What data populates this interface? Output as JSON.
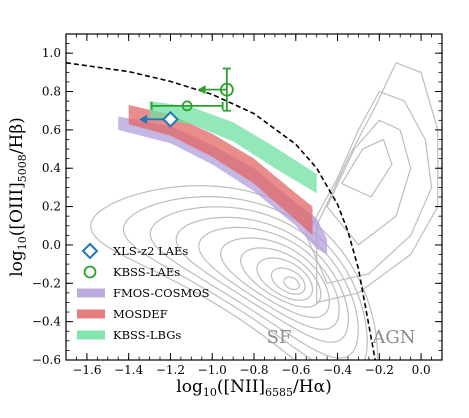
{
  "chart_data": {
    "type": "scatter",
    "xlabel": "log₁₀([NII]₆₅₈₅/Hα)",
    "ylabel": "log₁₀([OIII]₅₀₀₈/Hβ)",
    "xlim": [
      -1.7,
      0.1
    ],
    "ylim": [
      -0.6,
      1.1
    ],
    "x_ticks": [
      "−1.6",
      "−1.4",
      "−1.2",
      "−1.0",
      "−0.8",
      "−0.6",
      "−0.4",
      "−0.2",
      "0.0"
    ],
    "x_tick_values": [
      -1.6,
      -1.4,
      -1.2,
      -1.0,
      -0.8,
      -0.6,
      -0.4,
      -0.2,
      0.0
    ],
    "y_ticks": [
      "−0.6",
      "−0.4",
      "−0.2",
      "0.0",
      "0.2",
      "0.4",
      "0.6",
      "0.8",
      "1.0"
    ],
    "y_tick_values": [
      -0.6,
      -0.4,
      -0.2,
      0.0,
      0.2,
      0.4,
      0.6,
      0.8,
      1.0
    ],
    "grid": false,
    "legend_position": "bottom-left",
    "annotations": [
      {
        "text": "SF",
        "x": -0.68,
        "y": -0.48
      },
      {
        "text": "AGN",
        "x": -0.13,
        "y": -0.48
      }
    ],
    "demarcation_curve": {
      "style": "dashed",
      "points": [
        [
          -1.7,
          0.95
        ],
        [
          -1.4,
          0.904
        ],
        [
          -1.2,
          0.853
        ],
        [
          -1.0,
          0.785
        ],
        [
          -0.8,
          0.685
        ],
        [
          -0.6,
          0.525
        ],
        [
          -0.5,
          0.4
        ],
        [
          -0.4,
          0.211
        ],
        [
          -0.35,
          0.07
        ],
        [
          -0.3,
          -0.124
        ],
        [
          -0.25,
          -0.42
        ],
        [
          -0.22,
          -0.6
        ]
      ]
    },
    "bands": [
      {
        "name": "FMOS-COSMOS",
        "color": "#b39ddb",
        "upper": [
          [
            -1.45,
            0.67
          ],
          [
            -1.2,
            0.62
          ],
          [
            -1.0,
            0.52
          ],
          [
            -0.8,
            0.4
          ],
          [
            -0.6,
            0.22
          ],
          [
            -0.5,
            0.14
          ],
          [
            -0.45,
            0.03
          ]
        ],
        "lower": [
          [
            -1.45,
            0.6
          ],
          [
            -1.2,
            0.53
          ],
          [
            -1.0,
            0.42
          ],
          [
            -0.8,
            0.28
          ],
          [
            -0.6,
            0.1
          ],
          [
            -0.5,
            -0.02
          ],
          [
            -0.45,
            -0.05
          ]
        ]
      },
      {
        "name": "MOSDEF",
        "color": "#e06666",
        "upper": [
          [
            -1.4,
            0.73
          ],
          [
            -1.2,
            0.68
          ],
          [
            -1.0,
            0.58
          ],
          [
            -0.8,
            0.45
          ],
          [
            -0.6,
            0.27
          ],
          [
            -0.52,
            0.2
          ]
        ],
        "lower": [
          [
            -1.4,
            0.63
          ],
          [
            -1.2,
            0.57
          ],
          [
            -1.0,
            0.46
          ],
          [
            -0.8,
            0.32
          ],
          [
            -0.6,
            0.13
          ],
          [
            -0.52,
            0.05
          ]
        ]
      },
      {
        "name": "KBSS-LBGs",
        "color": "#6de0a0",
        "upper": [
          [
            -1.3,
            0.75
          ],
          [
            -1.1,
            0.72
          ],
          [
            -0.9,
            0.64
          ],
          [
            -0.7,
            0.51
          ],
          [
            -0.5,
            0.37
          ]
        ],
        "lower": [
          [
            -1.3,
            0.66
          ],
          [
            -1.1,
            0.63
          ],
          [
            -0.9,
            0.54
          ],
          [
            -0.7,
            0.4
          ],
          [
            -0.5,
            0.27
          ]
        ]
      }
    ],
    "series": [
      {
        "name": "XLS-z2 LAEs",
        "marker": "diamond-open",
        "color": "#1f77b4",
        "points": [
          {
            "x": -1.2,
            "y": 0.655,
            "x_upper_limit": true,
            "arrow_to": -1.35
          }
        ]
      },
      {
        "name": "KBSS-LAEs",
        "marker": "circle-open",
        "color": "#2ca02c",
        "points": [
          {
            "x": -1.12,
            "y": 0.725,
            "xerr": 0.17
          },
          {
            "x": -0.93,
            "y": 0.81,
            "yerr": 0.11,
            "x_upper_limit": true,
            "arrow_to": -1.07
          }
        ]
      }
    ],
    "contours": {
      "color": "#bdbdbd",
      "description": "SDSS local galaxies density contours"
    },
    "legend": [
      {
        "label": "XLS-z2 LAEs",
        "kind": "diamond",
        "color": "#1f77b4"
      },
      {
        "label": "KBSS-LAEs",
        "kind": "circle",
        "color": "#2ca02c"
      },
      {
        "label": "FMOS-COSMOS",
        "kind": "band",
        "color": "#b39ddb"
      },
      {
        "label": "MOSDEF",
        "kind": "band",
        "color": "#e06666"
      },
      {
        "label": "KBSS-LBGs",
        "kind": "band",
        "color": "#6de0a0"
      }
    ]
  }
}
